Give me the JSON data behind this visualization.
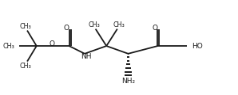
{
  "bg_color": "#ffffff",
  "line_color": "#1a1a1a",
  "lw": 1.3,
  "fig_width": 2.98,
  "fig_height": 1.2,
  "dpi": 100,
  "xlim": [
    0,
    298
  ],
  "ylim": [
    0,
    120
  ]
}
